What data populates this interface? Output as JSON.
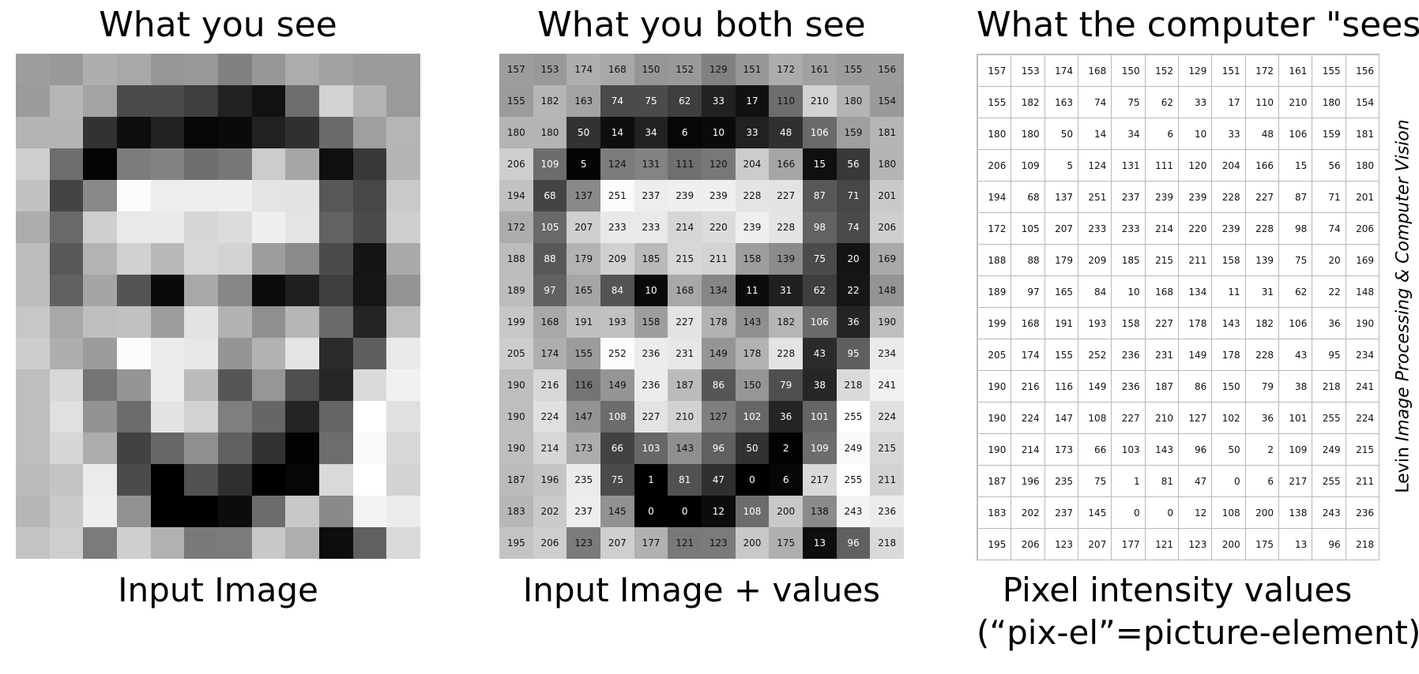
{
  "panels": {
    "left": {
      "title": "What you see",
      "caption": "Input Image"
    },
    "middle": {
      "title": "What you both see",
      "caption": "Input Image + values"
    },
    "right": {
      "title": "What the computer \"sees\"",
      "caption_line1": "Pixel intensity values",
      "caption_line2": "(“pix-el”=picture-element)"
    }
  },
  "credit": {
    "author": "Levin",
    "title": "Image Processing & Computer Vision"
  },
  "image_values": [
    [
      157,
      153,
      174,
      168,
      150,
      152,
      129,
      151,
      172,
      161,
      155,
      156
    ],
    [
      155,
      182,
      163,
      74,
      75,
      62,
      33,
      17,
      110,
      210,
      180,
      154
    ],
    [
      180,
      180,
      50,
      14,
      34,
      6,
      10,
      33,
      48,
      106,
      159,
      181
    ],
    [
      206,
      109,
      5,
      124,
      131,
      111,
      120,
      204,
      166,
      15,
      56,
      180
    ],
    [
      194,
      68,
      137,
      251,
      237,
      239,
      239,
      228,
      227,
      87,
      71,
      201
    ],
    [
      172,
      105,
      207,
      233,
      233,
      214,
      220,
      239,
      228,
      98,
      74,
      206
    ],
    [
      188,
      88,
      179,
      209,
      185,
      215,
      211,
      158,
      139,
      75,
      20,
      169
    ],
    [
      189,
      97,
      165,
      84,
      10,
      168,
      134,
      11,
      31,
      62,
      22,
      148
    ],
    [
      199,
      168,
      191,
      193,
      158,
      227,
      178,
      143,
      182,
      106,
      36,
      190
    ],
    [
      205,
      174,
      155,
      252,
      236,
      231,
      149,
      178,
      228,
      43,
      95,
      234
    ],
    [
      190,
      216,
      116,
      149,
      236,
      187,
      86,
      150,
      79,
      38,
      218,
      241
    ],
    [
      190,
      224,
      147,
      108,
      227,
      210,
      127,
      102,
      36,
      101,
      255,
      224
    ],
    [
      190,
      214,
      173,
      66,
      103,
      143,
      96,
      50,
      2,
      109,
      249,
      215
    ],
    [
      187,
      196,
      235,
      75,
      1,
      81,
      47,
      0,
      6,
      217,
      255,
      211
    ],
    [
      183,
      202,
      237,
      145,
      0,
      0,
      12,
      108,
      200,
      138,
      243,
      236
    ],
    [
      195,
      206,
      123,
      207,
      177,
      121,
      123,
      200,
      175,
      13,
      96,
      218
    ]
  ]
}
